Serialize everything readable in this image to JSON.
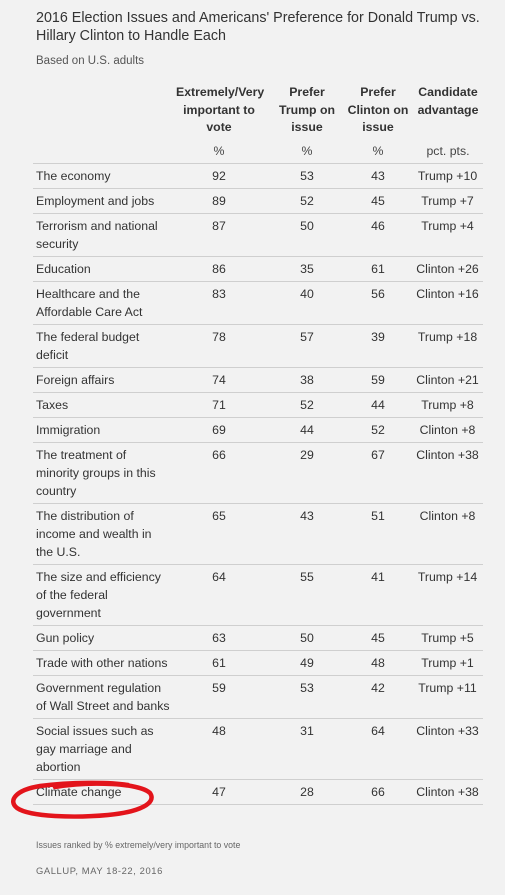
{
  "title": "2016 Election Issues and Americans' Preference for Donald Trump vs. Hillary Clinton to Handle Each",
  "subtitle": "Based on U.S. adults",
  "columns": [
    {
      "label": "Extremely/Very important to vote",
      "unit": "%"
    },
    {
      "label": "Prefer Trump on issue",
      "unit": "%"
    },
    {
      "label": "Prefer Clinton on issue",
      "unit": "%"
    },
    {
      "label": "Candidate advantage",
      "unit": "pct. pts."
    }
  ],
  "rows": [
    {
      "issue": "The economy",
      "important": "92",
      "trump": "53",
      "clinton": "43",
      "advantage": "Trump +10"
    },
    {
      "issue": "Employment and jobs",
      "important": "89",
      "trump": "52",
      "clinton": "45",
      "advantage": "Trump +7"
    },
    {
      "issue": "Terrorism and national security",
      "important": "87",
      "trump": "50",
      "clinton": "46",
      "advantage": "Trump +4"
    },
    {
      "issue": "Education",
      "important": "86",
      "trump": "35",
      "clinton": "61",
      "advantage": "Clinton +26"
    },
    {
      "issue": "Healthcare and the Affordable Care Act",
      "important": "83",
      "trump": "40",
      "clinton": "56",
      "advantage": "Clinton +16"
    },
    {
      "issue": "The federal budget deficit",
      "important": "78",
      "trump": "57",
      "clinton": "39",
      "advantage": "Trump +18"
    },
    {
      "issue": "Foreign affairs",
      "important": "74",
      "trump": "38",
      "clinton": "59",
      "advantage": "Clinton +21"
    },
    {
      "issue": "Taxes",
      "important": "71",
      "trump": "52",
      "clinton": "44",
      "advantage": "Trump +8"
    },
    {
      "issue": "Immigration",
      "important": "69",
      "trump": "44",
      "clinton": "52",
      "advantage": "Clinton +8"
    },
    {
      "issue": "The treatment of minority groups in this country",
      "important": "66",
      "trump": "29",
      "clinton": "67",
      "advantage": "Clinton +38"
    },
    {
      "issue": "The distribution of income and wealth in the U.S.",
      "important": "65",
      "trump": "43",
      "clinton": "51",
      "advantage": "Clinton +8"
    },
    {
      "issue": "The size and efficiency of the federal government",
      "important": "64",
      "trump": "55",
      "clinton": "41",
      "advantage": "Trump +14"
    },
    {
      "issue": "Gun policy",
      "important": "63",
      "trump": "50",
      "clinton": "45",
      "advantage": "Trump +5"
    },
    {
      "issue": "Trade with other nations",
      "important": "61",
      "trump": "49",
      "clinton": "48",
      "advantage": "Trump +1"
    },
    {
      "issue": "Government regulation of Wall Street and banks",
      "important": "59",
      "trump": "53",
      "clinton": "42",
      "advantage": "Trump +11"
    },
    {
      "issue": "Social issues such as gay marriage and abortion",
      "important": "48",
      "trump": "31",
      "clinton": "64",
      "advantage": "Clinton +33"
    },
    {
      "issue": "Climate change",
      "important": "47",
      "trump": "28",
      "clinton": "66",
      "advantage": "Clinton +38"
    }
  ],
  "footnote": "Issues ranked by % extremely/very important to vote",
  "source": "GALLUP, MAY 18-22, 2016",
  "highlight": {
    "row": "Climate change",
    "color": "#e3141b"
  }
}
